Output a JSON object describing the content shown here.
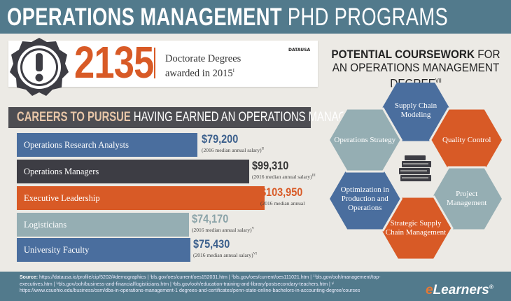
{
  "title": {
    "bold": "OPERATIONS MANAGEMENT",
    "rest": " PHD PROGRAMS"
  },
  "stat": {
    "number": "2135",
    "line1": "Doctorate Degrees",
    "line2": "awarded in 2015",
    "sup": "I",
    "source": "DATAUSA"
  },
  "coursework": {
    "line1_bold": "POTENTIAL COURSEWORK",
    "line1_rest": " FOR",
    "line2": "AN OPERATIONS MANAGEMENT DEGREE",
    "sup": "VII",
    "items": [
      {
        "label": "Supply Chain Modeling",
        "color": "#4a6e9e"
      },
      {
        "label": "Quality Control",
        "color": "#d85a26"
      },
      {
        "label": "Project Management",
        "color": "#95aeb3"
      },
      {
        "label": "Strategic Supply Chain Management",
        "color": "#d85a26"
      },
      {
        "label": "Optimization in Production and Operations",
        "color": "#4a6e9e"
      },
      {
        "label": "Operations Strategy",
        "color": "#95aeb3"
      }
    ]
  },
  "careers": {
    "heading_bold": "CAREERS TO PURSUE",
    "heading_rest": " HAVING EARNED AN OPERATIONS MANAGEMENT DEGREE",
    "items": [
      {
        "label": "Operations Research Analysts",
        "salary": "$79,200",
        "note": "(2016 median annual salary)",
        "sup": "II",
        "color": "#4a6e9e",
        "salary_color": "#3b5f8c"
      },
      {
        "label": "Operations Managers",
        "salary": "$99,310",
        "note": "(2016 median annual salary)",
        "sup": "III",
        "color": "#3d3d44",
        "salary_color": "#333333"
      },
      {
        "label": "Executive Leadership",
        "salary": "$103,950",
        "note": "(2016 median annual",
        "sup": "",
        "color": "#d85a26",
        "salary_color": "#d85a26"
      },
      {
        "label": "Logisticians",
        "salary": "$74,170",
        "note": "(2016 median annual salary)",
        "sup": "V",
        "color": "#95aeb3",
        "salary_color": "#8aa3a8"
      },
      {
        "label": "University Faculty",
        "salary": "$75,430",
        "note": "(2016 median annual salary)",
        "sup": "VI",
        "color": "#4a6e9e",
        "salary_color": "#3b5f8c"
      }
    ]
  },
  "footer": {
    "label": "Source:",
    "text": " https://datausa.io/profile/cip/5202/#demographics | ⁱbls.gov/oes/current/oes152031.htm | ⁱⁱbls.gov/oes/current/oes111021.htm | ⁱⁱⁱbls.gov/ooh/management/top-executives.htm | ⁱᵛbls.gov/ooh/business-and-financial/logisticians.htm | ᵛbls.gov/ooh/education-training-and-library/postsecondary-teachers.htm | ᵛⁱ https://www.csuohio.edu/business/osm/dba-in-operations-management-1 degrees-and-certificates/penn-state-online-bachelors-in-accounting-degree/courses",
    "brand_e": "e",
    "brand_rest": "Learners",
    "brand_mark": "®"
  },
  "colors": {
    "header": "#527a8c",
    "orange": "#d85a26",
    "blue": "#4a6e9e",
    "slate": "#95aeb3",
    "dark": "#3d3d44",
    "background": "#eceae5"
  }
}
